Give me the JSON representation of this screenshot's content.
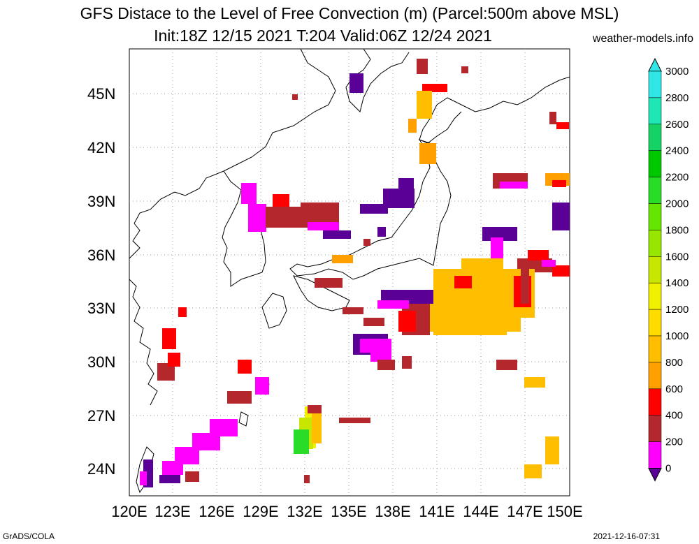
{
  "title_line1": "GFS Distace to the Level of Free Convection (m) (Parcel:500m above MSL)",
  "title_line2": "Init:18Z 12/15 2021 T:204 Valid:06Z 12/24 2021",
  "site": "weather-models.info",
  "footer_left": "GrADS/COLA",
  "footer_right": "2021-12-16-07:31",
  "lat_labels": [
    "45N",
    "42N",
    "39N",
    "36N",
    "33N",
    "30N",
    "27N",
    "24N"
  ],
  "lon_labels": [
    "120E",
    "123E",
    "126E",
    "129E",
    "132E",
    "135E",
    "138E",
    "141E",
    "144E",
    "147E",
    "150E"
  ],
  "colorbar": {
    "labels": [
      "3000",
      "2800",
      "2600",
      "2400",
      "2200",
      "2000",
      "1800",
      "1600",
      "1400",
      "1200",
      "1000",
      "800",
      "600",
      "400",
      "200",
      "0"
    ],
    "colors": [
      "#30e6e6",
      "#1ee6b4",
      "#14d264",
      "#00c800",
      "#28dc28",
      "#64e600",
      "#96e600",
      "#c8e600",
      "#f0f000",
      "#ffdc00",
      "#ffbe00",
      "#ffa000",
      "#ff0000",
      "#b4282d",
      "#ff00ff",
      "#5a0096"
    ]
  },
  "palette": {
    "purple": "#5a0096",
    "magenta": "#ff00ff",
    "darkred": "#b4282d",
    "red": "#ff0000",
    "orange": "#ffa000",
    "amber": "#ffbe00",
    "yellow": "#f0f000",
    "green": "#28dc28"
  }
}
